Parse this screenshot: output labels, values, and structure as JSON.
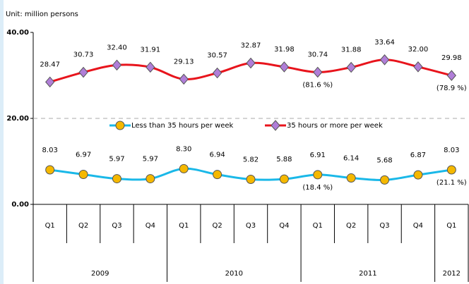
{
  "chart_data": {
    "type": "line",
    "unit_label": "Unit: million persons",
    "categories": [
      "Q1",
      "Q2",
      "Q3",
      "Q4",
      "Q1",
      "Q2",
      "Q3",
      "Q4",
      "Q1",
      "Q2",
      "Q3",
      "Q4",
      "Q1"
    ],
    "x_groups": [
      {
        "name": "2009",
        "span": 4
      },
      {
        "name": "2010",
        "span": 4
      },
      {
        "name": "2011",
        "span": 4
      },
      {
        "name": "2012",
        "span": 1
      }
    ],
    "series": [
      {
        "name": "Less than 35 hours per week",
        "color": "#1ab8e8",
        "marker": "circle",
        "marker_color": "#f5b800",
        "values": [
          8.03,
          6.97,
          5.97,
          5.97,
          8.3,
          6.94,
          5.82,
          5.88,
          6.91,
          6.14,
          5.68,
          6.87,
          8.03
        ],
        "value_labels": [
          "8.03",
          "6.97",
          "5.97",
          "5.97",
          "8.30",
          "6.94",
          "5.82",
          "5.88",
          "6.91",
          "6.14",
          "5.68",
          "6.87",
          "8.03"
        ]
      },
      {
        "name": "35 hours or more per week",
        "color": "#e8141c",
        "marker": "diamond",
        "marker_color": "#b07ed8",
        "values": [
          28.47,
          30.73,
          32.4,
          31.91,
          29.13,
          30.57,
          32.87,
          31.98,
          30.74,
          31.88,
          33.64,
          32.0,
          29.98
        ],
        "value_labels": [
          "28.47",
          "30.73",
          "32.40",
          "31.91",
          "29.13",
          "30.57",
          "32.87",
          "31.98",
          "30.74",
          "31.88",
          "33.64",
          "32.00",
          "29.98"
        ]
      }
    ],
    "annotations": [
      "(81.6 %)",
      "(78.9 %)",
      "(18.4 %)",
      "(21.1 %)"
    ],
    "ylim": [
      0,
      40
    ],
    "yticks": [
      {
        "value": 0,
        "label": "0.00"
      },
      {
        "value": 20,
        "label": "20.00"
      },
      {
        "value": 40,
        "label": "40.00"
      }
    ],
    "grid": true
  }
}
